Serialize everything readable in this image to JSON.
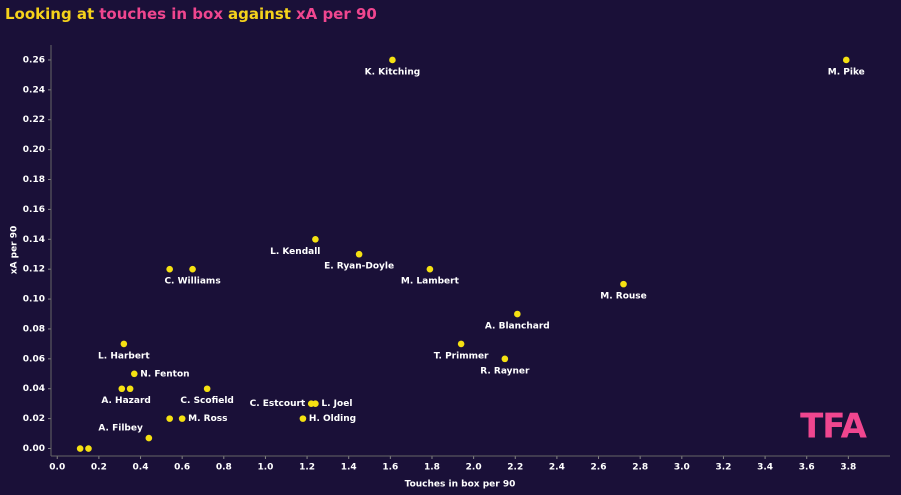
{
  "chart_data": {
    "type": "scatter",
    "title_parts": [
      {
        "text": "Looking at",
        "color": "#f5d21b"
      },
      {
        "text": "touches in box",
        "color": "#f0468f"
      },
      {
        "text": "against",
        "color": "#f5d21b"
      },
      {
        "text": "xA per 90",
        "color": "#f0468f"
      }
    ],
    "x_label": "Touches in box per 90",
    "y_label": "xA per 90",
    "logo": "TFA",
    "color": "#f5e112",
    "point_labels": [
      "K. Kitching",
      "M. Pike",
      "L. Kendall",
      "E. Ryan-Doyle",
      "M. Lambert",
      null,
      "C. Williams",
      "M. Rouse",
      "A. Blanchard",
      "L. Harbert",
      "T. Primmer",
      "R. Rayner",
      "N. Fenton",
      null,
      "A. Hazard",
      "C. Scofield",
      "C. Estcourt",
      "L. Joel",
      "H. Olding",
      null,
      "M. Ross",
      "A. Filbey",
      null,
      null
    ],
    "x": [
      1.61,
      3.79,
      1.24,
      1.45,
      1.79,
      0.54,
      0.65,
      2.72,
      2.21,
      0.32,
      1.94,
      2.15,
      0.37,
      0.31,
      0.35,
      0.72,
      1.22,
      1.24,
      1.18,
      0.54,
      0.6,
      0.44,
      0.11,
      0.15
    ],
    "values": [
      0.26,
      0.26,
      0.14,
      0.13,
      0.12,
      0.12,
      0.12,
      0.11,
      0.09,
      0.07,
      0.07,
      0.06,
      0.05,
      0.04,
      0.04,
      0.04,
      0.03,
      0.03,
      0.02,
      0.02,
      0.02,
      0.007,
      0,
      0
    ],
    "xlim": [
      -0.03,
      4.0
    ],
    "ylim": [
      -0.005,
      0.27
    ],
    "xticks": [
      {
        "value": 0,
        "label": "0.0"
      },
      0.2,
      0.4,
      0.6,
      0.8,
      {
        "value": 1,
        "label": "1.0"
      },
      1.2,
      1.4,
      1.6,
      1.8,
      {
        "value": 2,
        "label": "2.0"
      },
      2.2,
      2.4,
      2.6,
      2.8,
      {
        "value": 3,
        "label": "3.0"
      },
      3.2,
      3.4,
      3.6,
      3.8
    ],
    "yticks": [
      {
        "value": 0,
        "label": "0.00"
      },
      0.02,
      0.04,
      0.06,
      0.08,
      {
        "value": 0.1,
        "label": "0.10"
      },
      0.12,
      0.14,
      0.16,
      0.18,
      {
        "value": 0.2,
        "label": "0.20"
      },
      0.22,
      0.24,
      0.26
    ]
  }
}
